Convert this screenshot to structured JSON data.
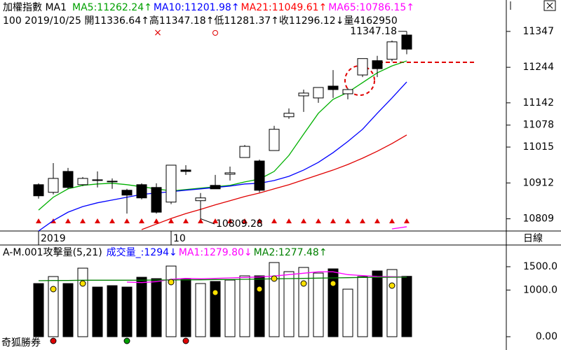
{
  "chart_data": [
    {
      "type": "candlestick",
      "title": "加權指數 MA1",
      "info": "100 2019/10/25 開11336.64↑高11347.18↑低11281.37↑收11296.12↓量4162950",
      "categories": [
        "2019",
        null,
        null,
        null,
        null,
        null,
        null,
        null,
        null,
        "10",
        null,
        null,
        null,
        null,
        null,
        null,
        null,
        null,
        null,
        null,
        null,
        null,
        null,
        null,
        null,
        null
      ],
      "open": [
        10907,
        10885,
        10945,
        10907,
        10921,
        10917,
        10891,
        10907,
        10899,
        10857,
        10949,
        10861,
        10905,
        10937,
        10985,
        10975,
        11005,
        11102,
        11162,
        11156,
        11190,
        11168,
        11222,
        11263,
        11267,
        11336.64
      ],
      "close": [
        10875,
        10925,
        10899,
        10925,
        10919,
        10915,
        10877,
        10869,
        10828,
        10963,
        10945,
        10869,
        10895,
        10941,
        11017,
        10891,
        11066,
        11112,
        11170,
        11186,
        11180,
        11180,
        11269,
        11240,
        11317,
        11296.12
      ],
      "high": [
        10911,
        10969,
        10955,
        10929,
        10945,
        10925,
        10895,
        10911,
        10911,
        10963,
        10963,
        10883,
        10935,
        10959,
        11021,
        10979,
        11076,
        11126,
        11180,
        11186,
        11236,
        11184,
        11269,
        11277,
        11321,
        11347.18
      ],
      "low": [
        10867,
        10879,
        10895,
        10903,
        10899,
        10895,
        10824,
        10865,
        10824,
        10851,
        10935,
        10809.28,
        10895,
        10919,
        10985,
        10885,
        11005,
        11096,
        11116,
        11142,
        11156,
        11152,
        11216,
        11216,
        11261,
        11281.37
      ],
      "series": [
        {
          "name": "MA5",
          "label": "MA5:11262.24↑",
          "color": "#00b000",
          "text_color": "#00a000",
          "values": [
            10834,
            10871,
            10895,
            10905,
            10909,
            10911,
            10907,
            10901,
            10895,
            10889,
            10893,
            10897,
            10901,
            10905,
            10915,
            10923,
            10945,
            10991,
            11052,
            11112,
            11152,
            11172,
            11200,
            11228,
            11248,
            11262.24
          ]
        },
        {
          "name": "MA10",
          "label": "MA10:11201.98↑",
          "color": "#0000ff",
          "text_color": "#0000ff",
          "values": [
            10774,
            10804,
            10828,
            10844,
            10855,
            10863,
            10871,
            10879,
            10883,
            10887,
            10891,
            10895,
            10899,
            10903,
            10909,
            10911,
            10919,
            10931,
            10949,
            10971,
            10999,
            11031,
            11066,
            11112,
            11156,
            11201.98
          ]
        },
        {
          "name": "MA21",
          "label": "MA21:11049.61↑",
          "color": "#e00000",
          "text_color": "#ff0000",
          "values": [
            null,
            null,
            null,
            null,
            null,
            null,
            null,
            10778,
            10794,
            10810,
            10824,
            10836,
            10849,
            10861,
            10873,
            10883,
            10895,
            10907,
            10921,
            10935,
            10949,
            10965,
            10983,
            11003,
            11025,
            11049.61
          ]
        },
        {
          "name": "MA65",
          "label": "MA65:10786.15↑",
          "color": "#ff00ff",
          "text_color": "#ff00ff",
          "values": [
            null,
            null,
            null,
            null,
            null,
            null,
            null,
            null,
            null,
            null,
            null,
            null,
            null,
            null,
            null,
            null,
            null,
            null,
            null,
            null,
            null,
            null,
            null,
            null,
            10780,
            10786.15
          ]
        }
      ],
      "annotations": [
        "11347.18",
        "10809.28"
      ],
      "ylim": [
        10774,
        11397
      ],
      "yticks": [
        11347,
        11244,
        11142,
        11078,
        11015,
        10912,
        10809
      ],
      "period_label": "日線"
    },
    {
      "type": "bar",
      "title": "A-M.001攻擊量(5,21)",
      "watermark": "奇狐勝券",
      "series": [
        {
          "name": "成交量_",
          "label": "成交量_:1294↓",
          "text_color": "#0000ff",
          "values": [
            1139,
            1289,
            1139,
            1469,
            1064,
            1094,
            1064,
            1274,
            1244,
            1514,
            1244,
            1139,
            1184,
            1214,
            1304,
            1304,
            1589,
            1394,
            1484,
            1364,
            1454,
            1019,
            1289,
            1409,
            1439,
            1294
          ]
        },
        {
          "name": "MA1",
          "label": "MA1:1279.80↓",
          "color": "#ff00ff",
          "text_color": "#ff00ff",
          "values": [
            null,
            null,
            null,
            null,
            null,
            null,
            1170,
            1160,
            1180,
            1230,
            1250,
            1240,
            1250,
            1260,
            1270,
            1280,
            1300,
            1330,
            1360,
            1390,
            1390,
            1330,
            1310,
            1290,
            1285,
            1279.8
          ]
        },
        {
          "name": "MA2",
          "label": "MA2:1277.48↑",
          "color": "#008000",
          "text_color": "#008000",
          "values": [
            1200,
            1205,
            1205,
            1210,
            1210,
            1210,
            1210,
            1210,
            1215,
            1215,
            1220,
            1220,
            1225,
            1225,
            1230,
            1235,
            1240,
            1245,
            1250,
            1255,
            1260,
            1265,
            1270,
            1272,
            1275,
            1277.48
          ]
        }
      ],
      "ylim": [
        0,
        1695
      ],
      "yticks": [
        {
          "value": 1500,
          "label": "1500.0"
        },
        {
          "value": 1000,
          "label": "1000.0"
        },
        {
          "value": 0,
          "label": "0.00"
        }
      ]
    }
  ]
}
